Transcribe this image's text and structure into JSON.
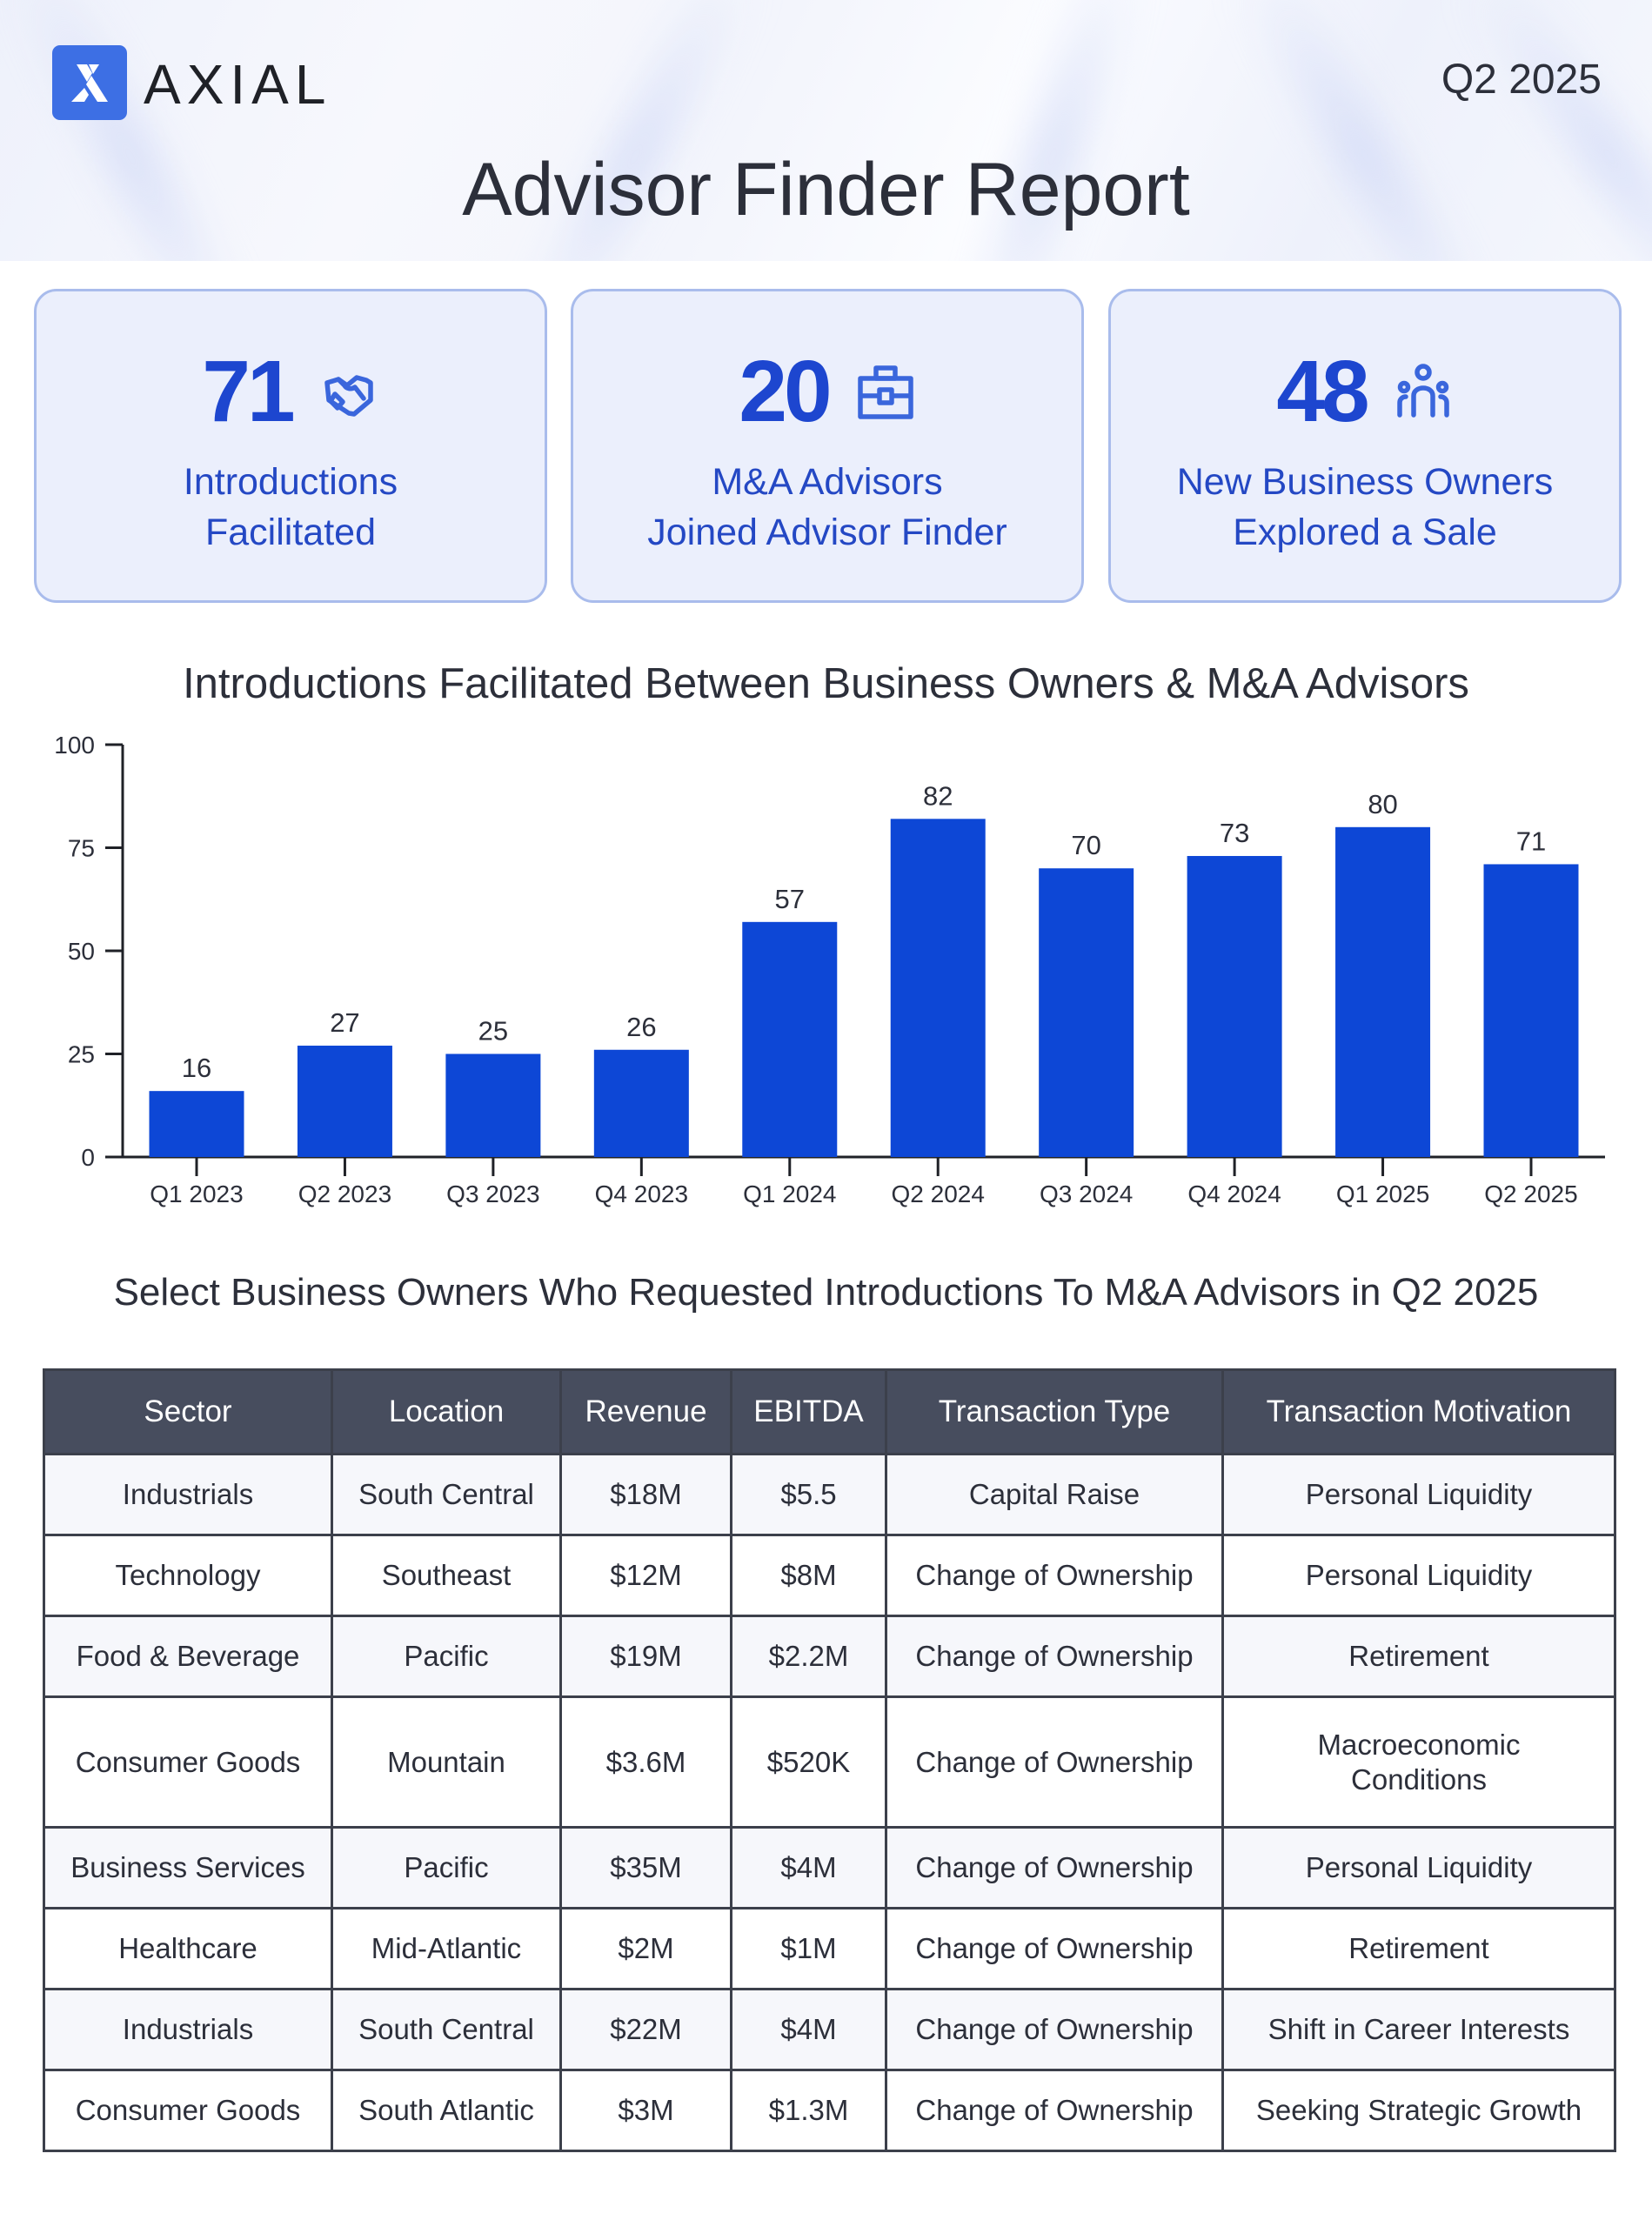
{
  "header": {
    "brand": "AXIAL",
    "period": "Q2 2025",
    "title": "Advisor Finder Report"
  },
  "colors": {
    "brand_blue": "#3d6fe4",
    "stat_blue": "#1d46cf",
    "bar_blue": "#0d47d6",
    "card_bg": "#ebeffc",
    "table_header_bg": "#474d5e"
  },
  "stats": [
    {
      "value": "71",
      "label_line1": "Introductions",
      "label_line2": "Facilitated",
      "icon": "handshake-icon"
    },
    {
      "value": "20",
      "label_line1": "M&A Advisors",
      "label_line2": "Joined Advisor Finder",
      "icon": "briefcase-icon"
    },
    {
      "value": "48",
      "label_line1": "New Business Owners",
      "label_line2": "Explored a Sale",
      "icon": "users-icon"
    }
  ],
  "chart_data": {
    "type": "bar",
    "title": "Introductions Facilitated Between Business Owners & M&A Advisors",
    "categories": [
      "Q1 2023",
      "Q2 2023",
      "Q3 2023",
      "Q4 2023",
      "Q1 2024",
      "Q2 2024",
      "Q3 2024",
      "Q4 2024",
      "Q1 2025",
      "Q2 2025"
    ],
    "values": [
      16,
      27,
      25,
      26,
      57,
      82,
      70,
      73,
      80,
      71
    ],
    "xlabel": "",
    "ylabel": "",
    "ylim": [
      0,
      100
    ],
    "yticks": [
      0,
      25,
      50,
      75,
      100
    ],
    "data_labels": true,
    "grid": false,
    "legend": "none"
  },
  "table": {
    "title": "Select Business Owners Who Requested Introductions To M&A Advisors in Q2 2025",
    "columns": [
      "Sector",
      "Location",
      "Revenue",
      "EBITDA",
      "Transaction Type",
      "Transaction Motivation"
    ],
    "rows": [
      [
        "Industrials",
        "South Central",
        "$18M",
        "$5.5",
        "Capital Raise",
        "Personal Liquidity"
      ],
      [
        "Technology",
        "Southeast",
        "$12M",
        "$8M",
        "Change of Ownership",
        "Personal Liquidity"
      ],
      [
        "Food & Beverage",
        "Pacific",
        "$19M",
        "$2.2M",
        "Change of Ownership",
        "Retirement"
      ],
      [
        "Consumer Goods",
        "Mountain",
        "$3.6M",
        "$520K",
        "Change of Ownership",
        "Macroeconomic Conditions"
      ],
      [
        "Business Services",
        "Pacific",
        "$35M",
        "$4M",
        "Change of Ownership",
        "Personal Liquidity"
      ],
      [
        "Healthcare",
        "Mid-Atlantic",
        "$2M",
        "$1M",
        "Change of Ownership",
        "Retirement"
      ],
      [
        "Industrials",
        "South Central",
        "$22M",
        "$4M",
        "Change of Ownership",
        "Shift in Career Interests"
      ],
      [
        "Consumer Goods",
        "South Atlantic",
        "$3M",
        "$1.3M",
        "Change of Ownership",
        "Seeking Strategic Growth"
      ]
    ]
  }
}
